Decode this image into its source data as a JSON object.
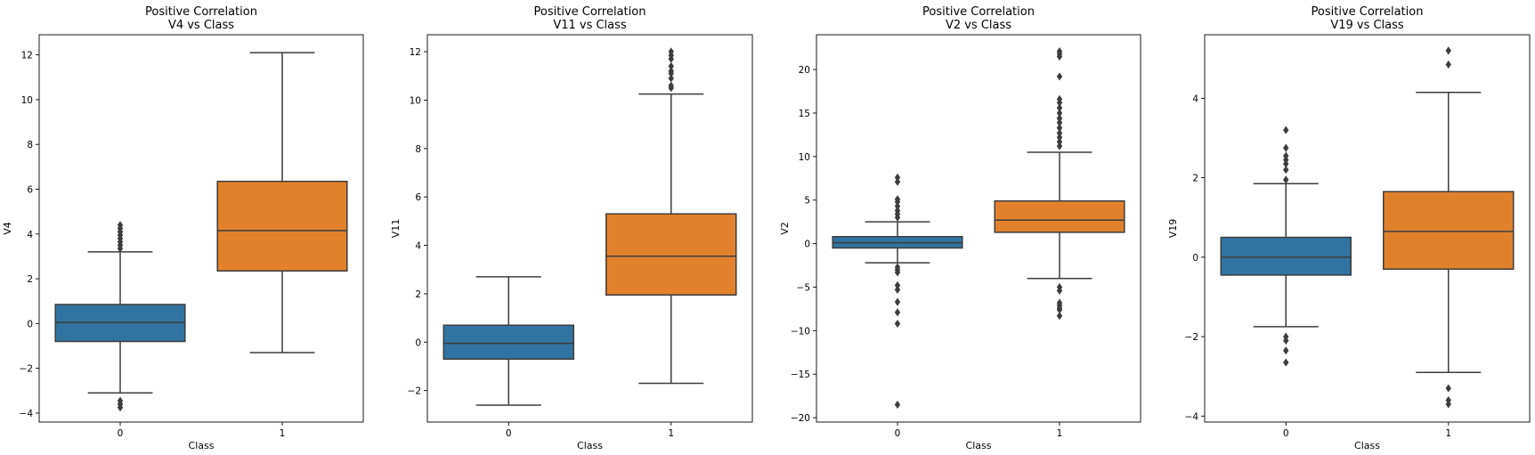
{
  "chart_data": [
    {
      "type": "box",
      "title_line1": "Positive Correlation",
      "title_line2": "V4 vs Class",
      "xlabel": "Class",
      "ylabel": "V4",
      "ylim": [
        -4.4,
        12.9
      ],
      "yticks": [
        -4,
        -2,
        0,
        2,
        4,
        6,
        8,
        10,
        12
      ],
      "categories": [
        "0",
        "1"
      ],
      "boxes": [
        {
          "category": "0",
          "q1": -0.8,
          "median": 0.05,
          "q3": 0.85,
          "whisker_low": -3.1,
          "whisker_high": 3.2,
          "outliers": [
            3.35,
            3.5,
            3.65,
            3.8,
            3.95,
            4.1,
            4.25,
            4.4,
            -3.45,
            -3.6,
            -3.75
          ],
          "color": "#3274a1"
        },
        {
          "category": "1",
          "q1": 2.35,
          "median": 4.15,
          "q3": 6.35,
          "whisker_low": -1.3,
          "whisker_high": 12.1,
          "outliers": [],
          "color": "#e1812c"
        }
      ]
    },
    {
      "type": "box",
      "title_line1": "Positive Correlation",
      "title_line2": "V11 vs Class",
      "xlabel": "Class",
      "ylabel": "V11",
      "ylim": [
        -3.3,
        12.7
      ],
      "yticks": [
        -2,
        0,
        2,
        4,
        6,
        8,
        10,
        12
      ],
      "categories": [
        "0",
        "1"
      ],
      "boxes": [
        {
          "category": "0",
          "q1": -0.7,
          "median": -0.05,
          "q3": 0.7,
          "whisker_low": -2.6,
          "whisker_high": 2.7,
          "outliers": [],
          "color": "#3274a1"
        },
        {
          "category": "1",
          "q1": 1.95,
          "median": 3.55,
          "q3": 5.3,
          "whisker_low": -1.7,
          "whisker_high": 10.25,
          "outliers": [
            10.5,
            10.6,
            10.9,
            11.1,
            11.2,
            11.4,
            11.7,
            11.85,
            12.0
          ],
          "color": "#e1812c"
        }
      ]
    },
    {
      "type": "box",
      "title_line1": "Positive Correlation",
      "title_line2": "V2 vs Class",
      "xlabel": "Class",
      "ylabel": "V2",
      "ylim": [
        -20.5,
        24.0
      ],
      "yticks": [
        -20,
        -15,
        -10,
        -5,
        0,
        5,
        10,
        15,
        20
      ],
      "categories": [
        "0",
        "1"
      ],
      "boxes": [
        {
          "category": "0",
          "q1": -0.5,
          "median": 0.1,
          "q3": 0.8,
          "whisker_low": -2.2,
          "whisker_high": 2.5,
          "outliers": [
            3.0,
            3.4,
            3.8,
            4.3,
            4.8,
            5.1,
            7.1,
            7.6,
            -2.7,
            -3.0,
            -3.3,
            -4.8,
            -5.3,
            -6.7,
            -7.9,
            -9.2,
            -18.5
          ],
          "color": "#3274a1"
        },
        {
          "category": "1",
          "q1": 1.3,
          "median": 2.7,
          "q3": 4.9,
          "whisker_low": -4.0,
          "whisker_high": 10.5,
          "outliers": [
            11.2,
            11.7,
            12.2,
            12.7,
            13.3,
            13.9,
            14.4,
            15.0,
            15.6,
            16.2,
            16.6,
            19.2,
            21.5,
            21.8,
            22.1,
            -5.0,
            -5.4,
            -6.8,
            -7.1,
            -7.4,
            -7.6,
            -8.3
          ],
          "color": "#e1812c"
        }
      ]
    },
    {
      "type": "box",
      "title_line1": "Positive Correlation",
      "title_line2": "V19 vs Class",
      "xlabel": "Class",
      "ylabel": "V19",
      "ylim": [
        -4.15,
        5.6
      ],
      "yticks": [
        -4,
        -2,
        0,
        2,
        4
      ],
      "categories": [
        "0",
        "1"
      ],
      "boxes": [
        {
          "category": "0",
          "q1": -0.45,
          "median": 0.0,
          "q3": 0.5,
          "whisker_low": -1.75,
          "whisker_high": 1.85,
          "outliers": [
            1.95,
            2.2,
            2.35,
            2.45,
            2.55,
            2.75,
            3.2,
            -2.0,
            -2.1,
            -2.35,
            -2.65
          ],
          "color": "#3274a1"
        },
        {
          "category": "1",
          "q1": -0.3,
          "median": 0.65,
          "q3": 1.65,
          "whisker_low": -2.9,
          "whisker_high": 4.15,
          "outliers": [
            4.85,
            5.2,
            -3.3,
            -3.6,
            -3.7
          ],
          "color": "#e1812c"
        }
      ]
    }
  ]
}
